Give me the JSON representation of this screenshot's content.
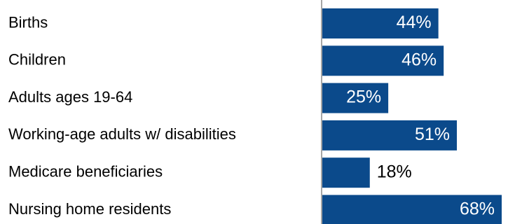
{
  "chart_data": {
    "type": "bar",
    "orientation": "horizontal",
    "categories": [
      "Births",
      "Children",
      "Adults ages 19-64",
      "Working-age adults w/ disabilities",
      "Medicare beneficiaries",
      "Nursing home residents"
    ],
    "values": [
      44,
      46,
      25,
      51,
      18,
      68
    ],
    "value_labels": [
      "44%",
      "46%",
      "25%",
      "51%",
      "18%",
      "68%"
    ],
    "unit": "%",
    "xlim": [
      0,
      68
    ],
    "grid": false,
    "legend": "none",
    "colors": {
      "bar": "#0b4a8b",
      "axis": "#a6a6a6",
      "label_inside": "#ffffff",
      "label_outside": "#000000"
    }
  }
}
